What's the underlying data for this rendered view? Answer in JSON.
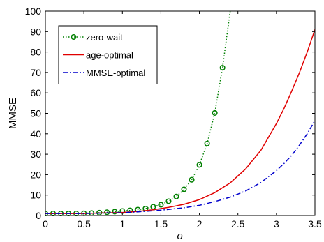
{
  "chart_data": {
    "type": "line",
    "title": "",
    "xlabel": "σ",
    "ylabel": "MMSE",
    "xlim": [
      0,
      3.5
    ],
    "ylim": [
      0,
      100
    ],
    "xticks": [
      0,
      0.5,
      1,
      1.5,
      2,
      2.5,
      3,
      3.5
    ],
    "xtick_labels": [
      "0",
      "0.5",
      "1",
      "1.5",
      "2",
      "2.5",
      "3",
      "3.5"
    ],
    "yticks": [
      0,
      10,
      20,
      30,
      40,
      50,
      60,
      70,
      80,
      90,
      100
    ],
    "ytick_labels": [
      "0",
      "10",
      "20",
      "30",
      "40",
      "50",
      "60",
      "70",
      "80",
      "90",
      "100"
    ],
    "grid": false,
    "legend_position": "top-left",
    "series": [
      {
        "name": "zero-wait",
        "color": "#007f00",
        "line_style": "dotted",
        "marker": "circle",
        "x": [
          0,
          0.1,
          0.2,
          0.3,
          0.4,
          0.5,
          0.6,
          0.7,
          0.8,
          0.9,
          1.0,
          1.1,
          1.2,
          1.3,
          1.4,
          1.5,
          1.6,
          1.7,
          1.8,
          1.9,
          2.0,
          2.1,
          2.2,
          2.3,
          2.4
        ],
        "y": [
          1.0,
          1.0,
          1.0,
          1.0,
          1.0,
          1.1,
          1.2,
          1.4,
          1.6,
          1.9,
          2.2,
          2.5,
          2.9,
          3.4,
          4.3,
          5.3,
          7.0,
          9.3,
          12.8,
          17.5,
          24.8,
          35.2,
          50.2,
          72.3,
          100
        ]
      },
      {
        "name": "age-optimal",
        "color": "#e00000",
        "line_style": "solid",
        "x": [
          0,
          0.5,
          1.0,
          1.2,
          1.4,
          1.6,
          1.8,
          2.0,
          2.2,
          2.4,
          2.6,
          2.8,
          3.0,
          3.1,
          3.2,
          3.3,
          3.4,
          3.5
        ],
        "y": [
          1.0,
          1.0,
          1.5,
          2.0,
          2.8,
          4.0,
          5.5,
          7.8,
          11.2,
          16.0,
          22.8,
          32.0,
          45.0,
          52.5,
          61.0,
          70.0,
          80.0,
          91.0
        ]
      },
      {
        "name": "MMSE-optimal",
        "color": "#0000cc",
        "line_style": "dashdot",
        "x": [
          0,
          0.5,
          1.0,
          1.2,
          1.4,
          1.6,
          1.8,
          2.0,
          2.2,
          2.4,
          2.6,
          2.8,
          3.0,
          3.1,
          3.2,
          3.3,
          3.4,
          3.5
        ],
        "y": [
          1.0,
          1.0,
          1.4,
          1.8,
          2.3,
          3.0,
          3.8,
          5.0,
          6.8,
          9.0,
          12.0,
          16.2,
          22.0,
          25.5,
          29.5,
          34.5,
          40.0,
          46.5
        ]
      }
    ]
  }
}
